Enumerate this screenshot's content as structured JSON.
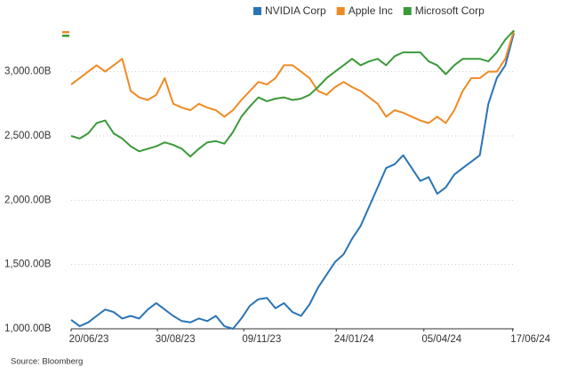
{
  "chart_data": {
    "type": "line",
    "source": "Source: Bloomberg",
    "x": [
      "2023-06-20",
      "2023-06-27",
      "2023-07-04",
      "2023-07-11",
      "2023-07-18",
      "2023-07-25",
      "2023-08-01",
      "2023-08-08",
      "2023-08-15",
      "2023-08-22",
      "2023-08-29",
      "2023-09-05",
      "2023-09-12",
      "2023-09-19",
      "2023-09-26",
      "2023-10-03",
      "2023-10-10",
      "2023-10-17",
      "2023-10-24",
      "2023-10-31",
      "2023-11-07",
      "2023-11-14",
      "2023-11-21",
      "2023-11-28",
      "2023-12-05",
      "2023-12-12",
      "2023-12-19",
      "2023-12-26",
      "2024-01-02",
      "2024-01-09",
      "2024-01-16",
      "2024-01-23",
      "2024-01-30",
      "2024-02-06",
      "2024-02-13",
      "2024-02-20",
      "2024-02-27",
      "2024-03-05",
      "2024-03-12",
      "2024-03-19",
      "2024-03-26",
      "2024-04-02",
      "2024-04-09",
      "2024-04-16",
      "2024-04-23",
      "2024-04-30",
      "2024-05-07",
      "2024-05-14",
      "2024-05-21",
      "2024-05-28",
      "2024-06-04",
      "2024-06-11",
      "2024-06-18"
    ],
    "series": [
      {
        "name": "NVIDIA Corp",
        "color": "#2a74b5",
        "values": [
          1070,
          1020,
          1050,
          1100,
          1150,
          1130,
          1080,
          1100,
          1080,
          1150,
          1200,
          1150,
          1100,
          1060,
          1050,
          1080,
          1060,
          1100,
          1020,
          1000,
          1080,
          1180,
          1230,
          1240,
          1160,
          1200,
          1130,
          1100,
          1190,
          1320,
          1420,
          1520,
          1580,
          1700,
          1800,
          1950,
          2100,
          2250,
          2280,
          2350,
          2250,
          2150,
          2180,
          2050,
          2100,
          2200,
          2250,
          2300,
          2350,
          2750,
          2950,
          3050,
          3300
        ]
      },
      {
        "name": "Apple Inc",
        "color": "#f08a24",
        "values": [
          2900,
          2950,
          3000,
          3050,
          3000,
          3050,
          3100,
          2850,
          2800,
          2780,
          2820,
          2950,
          2750,
          2720,
          2700,
          2750,
          2720,
          2700,
          2650,
          2700,
          2780,
          2850,
          2920,
          2900,
          2950,
          3050,
          3050,
          3000,
          2950,
          2850,
          2820,
          2880,
          2920,
          2880,
          2850,
          2800,
          2750,
          2650,
          2700,
          2680,
          2650,
          2620,
          2600,
          2650,
          2600,
          2700,
          2850,
          2950,
          2950,
          3000,
          3000,
          3100,
          3320
        ]
      },
      {
        "name": "Microsoft Corp",
        "color": "#3a9a3a",
        "values": [
          2500,
          2480,
          2520,
          2600,
          2620,
          2520,
          2480,
          2420,
          2380,
          2400,
          2420,
          2450,
          2430,
          2400,
          2340,
          2400,
          2450,
          2460,
          2440,
          2530,
          2650,
          2730,
          2800,
          2770,
          2790,
          2800,
          2780,
          2790,
          2820,
          2880,
          2950,
          3000,
          3050,
          3100,
          3050,
          3080,
          3100,
          3050,
          3120,
          3150,
          3150,
          3150,
          3080,
          3050,
          2980,
          3050,
          3100,
          3100,
          3100,
          3080,
          3150,
          3250,
          3320
        ]
      }
    ],
    "xlim": [
      "2023-06-20",
      "2024-06-18"
    ],
    "xticks": [
      {
        "value": "2023-06-20",
        "label": "20/06/23"
      },
      {
        "value": "2023-08-30",
        "label": "30/08/23"
      },
      {
        "value": "2023-11-09",
        "label": "09/11/23"
      },
      {
        "value": "2024-01-24",
        "label": "24/01/24"
      },
      {
        "value": "2024-04-05",
        "label": "05/04/24"
      },
      {
        "value": "2024-06-17",
        "label": "17/06/24"
      }
    ],
    "ylim": [
      1000,
      3350
    ],
    "yticks": [
      {
        "value": 1000,
        "label": "1,000.00B"
      },
      {
        "value": 1500,
        "label": "1,500.00B"
      },
      {
        "value": 2000,
        "label": "2,000.00B"
      },
      {
        "value": 2500,
        "label": "2,500.00B"
      },
      {
        "value": 3000,
        "label": "3,000.00B"
      }
    ],
    "grid": true
  }
}
